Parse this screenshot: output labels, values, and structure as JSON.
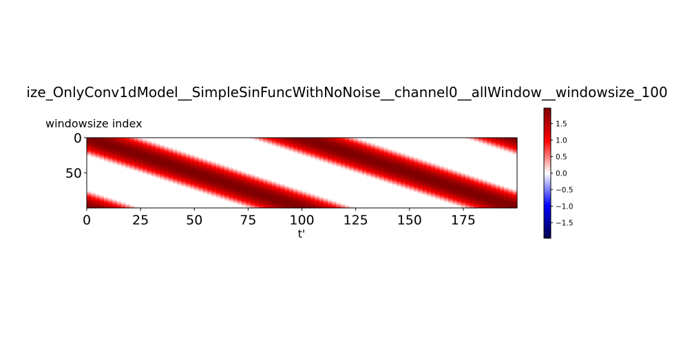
{
  "chart_data": {
    "type": "heatmap",
    "title": "ize_OnlyConv1dModel__SimpleSinFuncWithNoNoise__channel0__allWindow__windowsize_100",
    "xlabel": "t'",
    "ylabel": "windowsize index",
    "x_range": [
      0,
      200
    ],
    "y_range": [
      0,
      100
    ],
    "y_inverted": true,
    "x_ticks": [
      "0",
      "25",
      "50",
      "75",
      "100",
      "125",
      "150",
      "175"
    ],
    "y_ticks": [
      "0",
      "50"
    ],
    "colormap": "seismic",
    "vmin": -1.97,
    "vmax": 1.97,
    "colorbar_ticks": [
      "1.5",
      "1.0",
      "0.5",
      "0.0",
      "−0.5",
      "−1.0",
      "−1.5"
    ],
    "function": "value(t', w) = 2 * max(0, sin(2π (t' − w) / 100 + π/2))",
    "period": 100,
    "amplitude": 2
  }
}
